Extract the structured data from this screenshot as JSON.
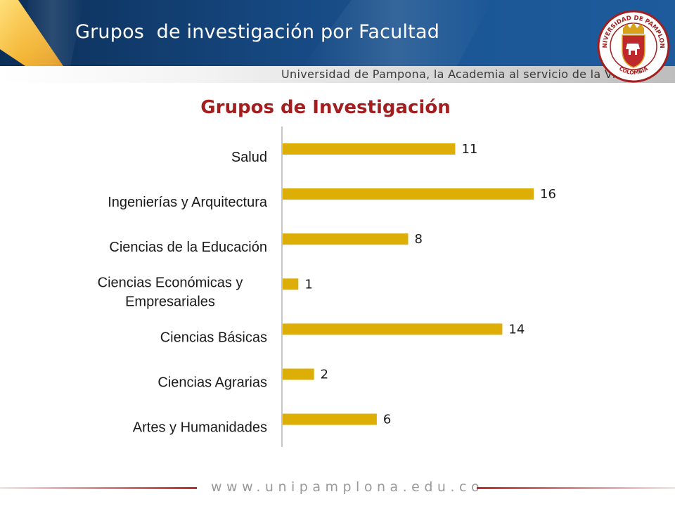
{
  "header": {
    "title": "Grupos  de investigación por Facultad",
    "tagline": "Universidad de Pampona, la Academia al servicio de la Vida",
    "seal_text_top": "UNIVERSIDAD DE PAMPLONA",
    "seal_text_bottom": "COLOMBIA",
    "colors": {
      "primary": "#174a84",
      "accent": "#f2b230",
      "brand_red": "#a31e1e"
    }
  },
  "chart_data": {
    "type": "bar",
    "orientation": "horizontal",
    "title": "Grupos de Investigación",
    "categories": [
      "Salud",
      "Ingenierías y Arquitectura",
      "Ciencias de la Educación",
      "Ciencias Económicas y Empresariales",
      "Ciencias Básicas",
      "Ciencias Agrarias",
      "Artes y Humanidades"
    ],
    "category_lines": [
      [
        "Salud"
      ],
      [
        "Ingenierías y Arquitectura"
      ],
      [
        "Ciencias de la Educación"
      ],
      [
        "Ciencias Económicas y",
        "Empresariales"
      ],
      [
        "Ciencias Básicas"
      ],
      [
        "Ciencias Agrarias"
      ],
      [
        "Artes y Humanidades"
      ]
    ],
    "values": [
      11,
      16,
      8,
      1,
      14,
      2,
      6
    ],
    "bar_color": "#ddae05",
    "xlim": [
      0,
      16
    ],
    "data_labels": true,
    "grid": false
  },
  "footer": {
    "url": "www.unipamplona.edu.co"
  }
}
